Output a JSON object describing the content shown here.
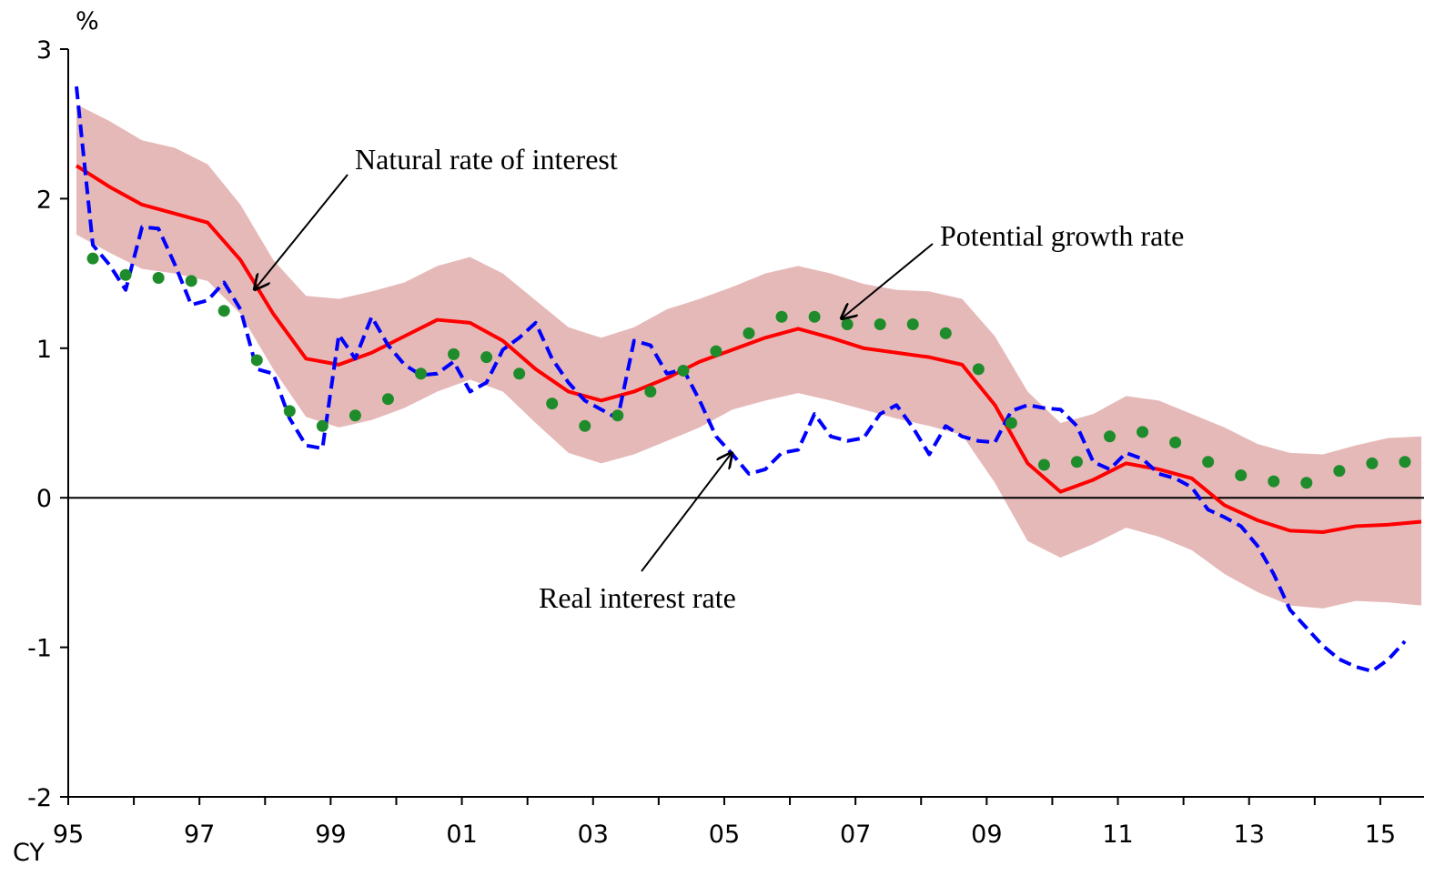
{
  "chart_data": {
    "type": "line",
    "y_unit": "%",
    "x_unit": "CY",
    "xlim": [
      1995,
      2015.667
    ],
    "ylim": [
      -2,
      3
    ],
    "xticks": [
      {
        "value": 1995,
        "label": "95"
      },
      {
        "value": 1997,
        "label": "97"
      },
      {
        "value": 1999,
        "label": "99"
      },
      {
        "value": 2001,
        "label": "01"
      },
      {
        "value": 2003,
        "label": "03"
      },
      {
        "value": 2005,
        "label": "05"
      },
      {
        "value": 2007,
        "label": "07"
      },
      {
        "value": 2009,
        "label": "09"
      },
      {
        "value": 2011,
        "label": "11"
      },
      {
        "value": 2013,
        "label": "13"
      },
      {
        "value": 2015,
        "label": "15"
      }
    ],
    "xminorticks": [
      1996,
      1998,
      2000,
      2002,
      2004,
      2006,
      2008,
      2010,
      2012,
      2014
    ],
    "yticks": [
      -2,
      -1,
      0,
      1,
      2,
      3
    ],
    "zero_line": true,
    "band": {
      "color": "#e6b9b9",
      "x": [
        1995.125,
        1995.625,
        1996.125,
        1996.625,
        1997.125,
        1997.625,
        1998.125,
        1998.625,
        1999.125,
        1999.625,
        2000.125,
        2000.625,
        2001.125,
        2001.625,
        2002.125,
        2002.625,
        2003.125,
        2003.625,
        2004.125,
        2004.625,
        2005.125,
        2005.625,
        2006.125,
        2006.625,
        2007.125,
        2007.625,
        2008.125,
        2008.625,
        2009.125,
        2009.625,
        2010.125,
        2010.625,
        2011.125,
        2011.625,
        2012.125,
        2012.625,
        2013.125,
        2013.625,
        2014.125,
        2014.625,
        2015.125,
        2015.625
      ],
      "upper": [
        2.63,
        2.52,
        2.39,
        2.34,
        2.23,
        1.96,
        1.59,
        1.35,
        1.33,
        1.38,
        1.44,
        1.55,
        1.61,
        1.5,
        1.32,
        1.14,
        1.07,
        1.14,
        1.26,
        1.33,
        1.41,
        1.5,
        1.55,
        1.5,
        1.43,
        1.39,
        1.38,
        1.33,
        1.08,
        0.71,
        0.5,
        0.56,
        0.68,
        0.65,
        0.56,
        0.47,
        0.36,
        0.3,
        0.29,
        0.35,
        0.4,
        0.41
      ],
      "lower": [
        1.76,
        1.64,
        1.53,
        1.5,
        1.45,
        1.23,
        0.86,
        0.54,
        0.47,
        0.52,
        0.6,
        0.71,
        0.79,
        0.71,
        0.5,
        0.3,
        0.23,
        0.29,
        0.38,
        0.47,
        0.59,
        0.65,
        0.7,
        0.65,
        0.59,
        0.53,
        0.48,
        0.42,
        0.1,
        -0.29,
        -0.4,
        -0.31,
        -0.2,
        -0.26,
        -0.35,
        -0.51,
        -0.63,
        -0.72,
        -0.74,
        -0.69,
        -0.7,
        -0.72
      ]
    },
    "series": [
      {
        "name": "Natural rate of interest",
        "color": "#ff0000",
        "mode": "solid",
        "x": [
          1995.125,
          1995.625,
          1996.125,
          1996.625,
          1997.125,
          1997.625,
          1998.125,
          1998.625,
          1999.125,
          1999.625,
          2000.125,
          2000.625,
          2001.125,
          2001.625,
          2002.125,
          2002.625,
          2003.125,
          2003.625,
          2004.125,
          2004.625,
          2005.125,
          2005.625,
          2006.125,
          2006.625,
          2007.125,
          2007.625,
          2008.125,
          2008.625,
          2009.125,
          2009.625,
          2010.125,
          2010.625,
          2011.125,
          2011.625,
          2012.125,
          2012.625,
          2013.125,
          2013.625,
          2014.125,
          2014.625,
          2015.125,
          2015.625
        ],
        "values": [
          2.22,
          2.08,
          1.96,
          1.9,
          1.84,
          1.59,
          1.23,
          0.93,
          0.89,
          0.97,
          1.08,
          1.19,
          1.17,
          1.05,
          0.86,
          0.71,
          0.65,
          0.71,
          0.8,
          0.91,
          0.99,
          1.07,
          1.13,
          1.07,
          1.0,
          0.97,
          0.94,
          0.89,
          0.62,
          0.23,
          0.04,
          0.12,
          0.23,
          0.19,
          0.13,
          -0.05,
          -0.15,
          -0.22,
          -0.23,
          -0.19,
          -0.18,
          -0.16
        ]
      },
      {
        "name": "Real interest rate",
        "color": "#0000ff",
        "mode": "dashed",
        "x": [
          1995.125,
          1995.375,
          1995.625,
          1995.875,
          1996.125,
          1996.375,
          1996.625,
          1996.875,
          1997.125,
          1997.375,
          1997.625,
          1997.875,
          1998.125,
          1998.375,
          1998.625,
          1998.875,
          1999.125,
          1999.375,
          1999.625,
          1999.875,
          2000.125,
          2000.375,
          2000.625,
          2000.875,
          2001.125,
          2001.375,
          2001.625,
          2001.875,
          2002.125,
          2002.375,
          2002.625,
          2002.875,
          2003.125,
          2003.375,
          2003.625,
          2003.875,
          2004.125,
          2004.375,
          2004.625,
          2004.875,
          2005.125,
          2005.375,
          2005.625,
          2005.875,
          2006.125,
          2006.375,
          2006.625,
          2006.875,
          2007.125,
          2007.375,
          2007.625,
          2007.875,
          2008.125,
          2008.375,
          2008.625,
          2008.875,
          2009.125,
          2009.375,
          2009.625,
          2009.875,
          2010.125,
          2010.375,
          2010.625,
          2010.875,
          2011.125,
          2011.375,
          2011.625,
          2011.875,
          2012.125,
          2012.375,
          2012.625,
          2012.875,
          2013.125,
          2013.375,
          2013.625,
          2013.875,
          2014.125,
          2014.375,
          2014.625,
          2014.875,
          2015.125,
          2015.375
        ],
        "values": [
          2.75,
          1.69,
          1.56,
          1.39,
          1.81,
          1.8,
          1.56,
          1.29,
          1.32,
          1.44,
          1.26,
          0.86,
          0.83,
          0.53,
          0.35,
          0.33,
          1.09,
          0.93,
          1.21,
          1.02,
          0.89,
          0.82,
          0.83,
          0.91,
          0.71,
          0.77,
          0.99,
          1.07,
          1.17,
          0.93,
          0.77,
          0.65,
          0.59,
          0.53,
          1.05,
          1.02,
          0.83,
          0.86,
          0.65,
          0.41,
          0.29,
          0.16,
          0.19,
          0.3,
          0.32,
          0.56,
          0.41,
          0.38,
          0.4,
          0.56,
          0.62,
          0.47,
          0.29,
          0.48,
          0.41,
          0.38,
          0.37,
          0.58,
          0.62,
          0.6,
          0.59,
          0.48,
          0.24,
          0.19,
          0.3,
          0.26,
          0.16,
          0.13,
          0.07,
          -0.08,
          -0.13,
          -0.19,
          -0.32,
          -0.51,
          -0.75,
          -0.87,
          -0.99,
          -1.08,
          -1.13,
          -1.16,
          -1.08,
          -0.96
        ]
      },
      {
        "name": "Potential growth rate",
        "color": "#1e8c2a",
        "mode": "markers",
        "x": [
          1995.375,
          1995.875,
          1996.375,
          1996.875,
          1997.375,
          1997.875,
          1998.375,
          1998.875,
          1999.375,
          1999.875,
          2000.375,
          2000.875,
          2001.375,
          2001.875,
          2002.375,
          2002.875,
          2003.375,
          2003.875,
          2004.375,
          2004.875,
          2005.375,
          2005.875,
          2006.375,
          2006.875,
          2007.375,
          2007.875,
          2008.375,
          2008.875,
          2009.375,
          2009.875,
          2010.375,
          2010.875,
          2011.375,
          2011.875,
          2012.375,
          2012.875,
          2013.375,
          2013.875,
          2014.375,
          2014.875,
          2015.375
        ],
        "values": [
          1.6,
          1.49,
          1.47,
          1.45,
          1.25,
          0.92,
          0.58,
          0.48,
          0.55,
          0.66,
          0.83,
          0.96,
          0.94,
          0.83,
          0.63,
          0.48,
          0.55,
          0.71,
          0.85,
          0.98,
          1.1,
          1.21,
          1.21,
          1.16,
          1.16,
          1.16,
          1.1,
          0.86,
          0.5,
          0.22,
          0.24,
          0.41,
          0.44,
          0.37,
          0.24,
          0.15,
          0.11,
          0.1,
          0.18,
          0.23,
          0.24
        ]
      }
    ]
  }
}
